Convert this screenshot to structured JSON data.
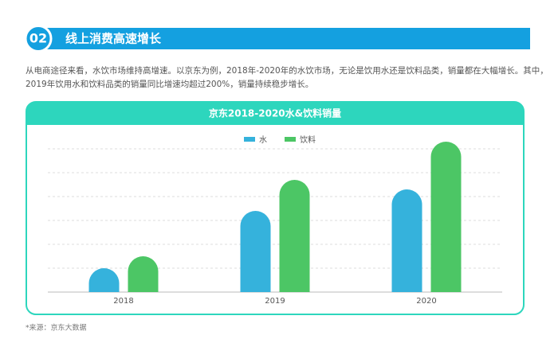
{
  "header": {
    "number": "02",
    "title": "线上消费高速增长"
  },
  "paragraph": [
    "从电商途径来看，水饮市场维持高增速。以京东为例，2018年-2020年的水饮市场，无论是饮用水还是饮料品类，销量都在大幅增长。其中，",
    "2019年饮用水和饮料品类的销量同比增速均超过200%，销量持续稳步增长。"
  ],
  "chart_data": {
    "type": "bar",
    "title": "京东2018-2020水&饮料销量",
    "categories": [
      "2018",
      "2019",
      "2020"
    ],
    "series": [
      {
        "name": "水",
        "color": "#35b2dc",
        "values": [
          1.0,
          3.4,
          4.3
        ]
      },
      {
        "name": "饮料",
        "color": "#4cc665",
        "values": [
          1.5,
          4.7,
          6.3
        ]
      }
    ],
    "ylim": [
      0,
      7
    ],
    "yticks": [
      0,
      1,
      2,
      3,
      4,
      5,
      6
    ],
    "grid": true,
    "legend": "top"
  },
  "source": "*来源：京东大数据"
}
